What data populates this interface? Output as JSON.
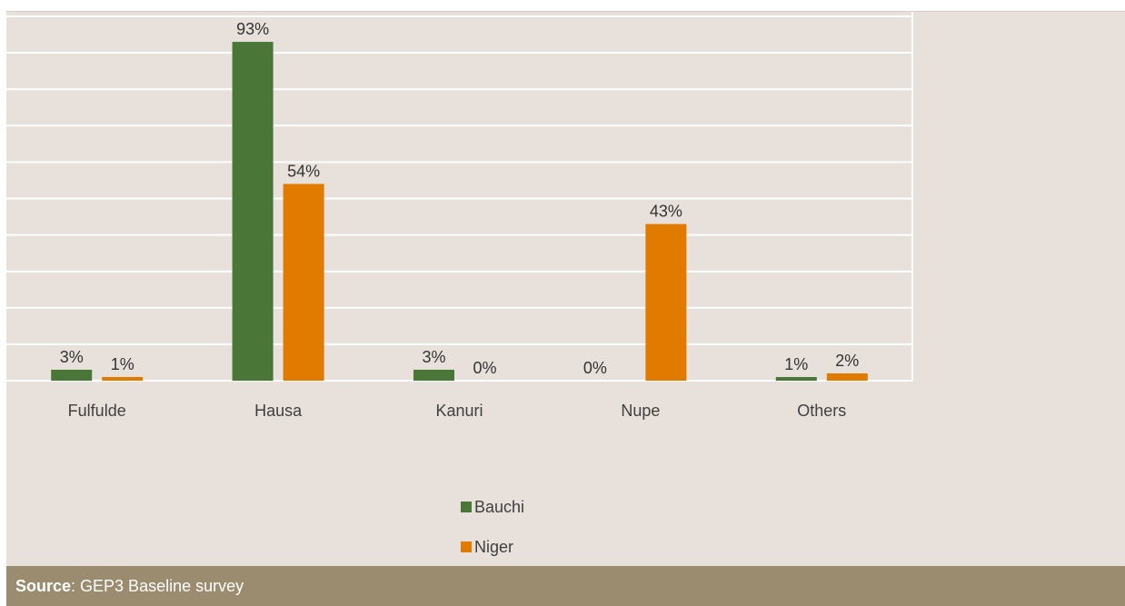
{
  "chart_data": {
    "type": "bar",
    "categories": [
      "Fulfulde",
      "Hausa",
      "Kanuri",
      "Nupe",
      "Others"
    ],
    "series": [
      {
        "name": "Bauchi",
        "values": [
          3,
          93,
          3,
          0,
          1
        ],
        "labels": [
          "3%",
          "93%",
          "3%",
          "",
          "1%"
        ],
        "color": "#4a7638"
      },
      {
        "name": "Niger",
        "values": [
          1,
          54,
          0,
          43,
          2
        ],
        "labels": [
          "1%",
          "54%",
          "0%",
          "43%",
          "2%"
        ],
        "color": "#e07b00"
      }
    ],
    "extra_labels": [
      {
        "category": "Nupe",
        "series": "Bauchi",
        "text": "0%"
      }
    ],
    "ylim": [
      0,
      100
    ],
    "grid": true,
    "legend": "bottom-center"
  },
  "colors": {
    "plot_background": "#e8e0da",
    "gridline": "#ffffff",
    "source_bar": "#9c8c6f"
  },
  "source": {
    "label": "Source",
    "text": ": GEP3 Baseline survey"
  }
}
